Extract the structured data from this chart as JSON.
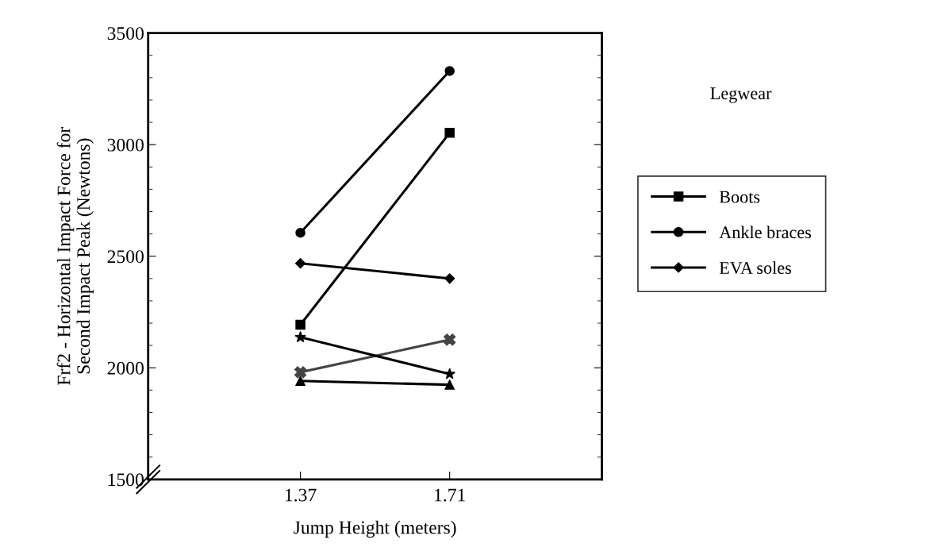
{
  "chart_data": {
    "type": "line",
    "xlabel": "Jump Height (meters)",
    "ylabel": "Frf2 - Horizontal Impact Force for\nSecond Impact Peak (Newtons)",
    "legend_title": "Legwear",
    "categories": [
      "1.37",
      "1.71"
    ],
    "series": [
      {
        "name": "Boots",
        "color": "#000000",
        "marker": "square",
        "values": [
          2193,
          3053
        ]
      },
      {
        "name": "Ankle braces",
        "color": "#000000",
        "marker": "circle",
        "values": [
          2605,
          3330
        ]
      },
      {
        "color": "#000000",
        "marker": "triangle",
        "values": [
          1941,
          1924
        ]
      },
      {
        "name": "EVA soles",
        "color": "#000000",
        "marker": "diamond",
        "values": [
          2468,
          2400
        ]
      },
      {
        "color": "#444444",
        "marker": "cross",
        "values": [
          1980,
          2126
        ]
      },
      {
        "color": "#000000",
        "marker": "star",
        "values": [
          2137,
          1972
        ]
      }
    ],
    "ylim": [
      1500,
      3500
    ],
    "yticks": [
      1500,
      2000,
      2500,
      3000,
      3500
    ],
    "grid": false,
    "legend": "right",
    "line_style": "solid"
  }
}
